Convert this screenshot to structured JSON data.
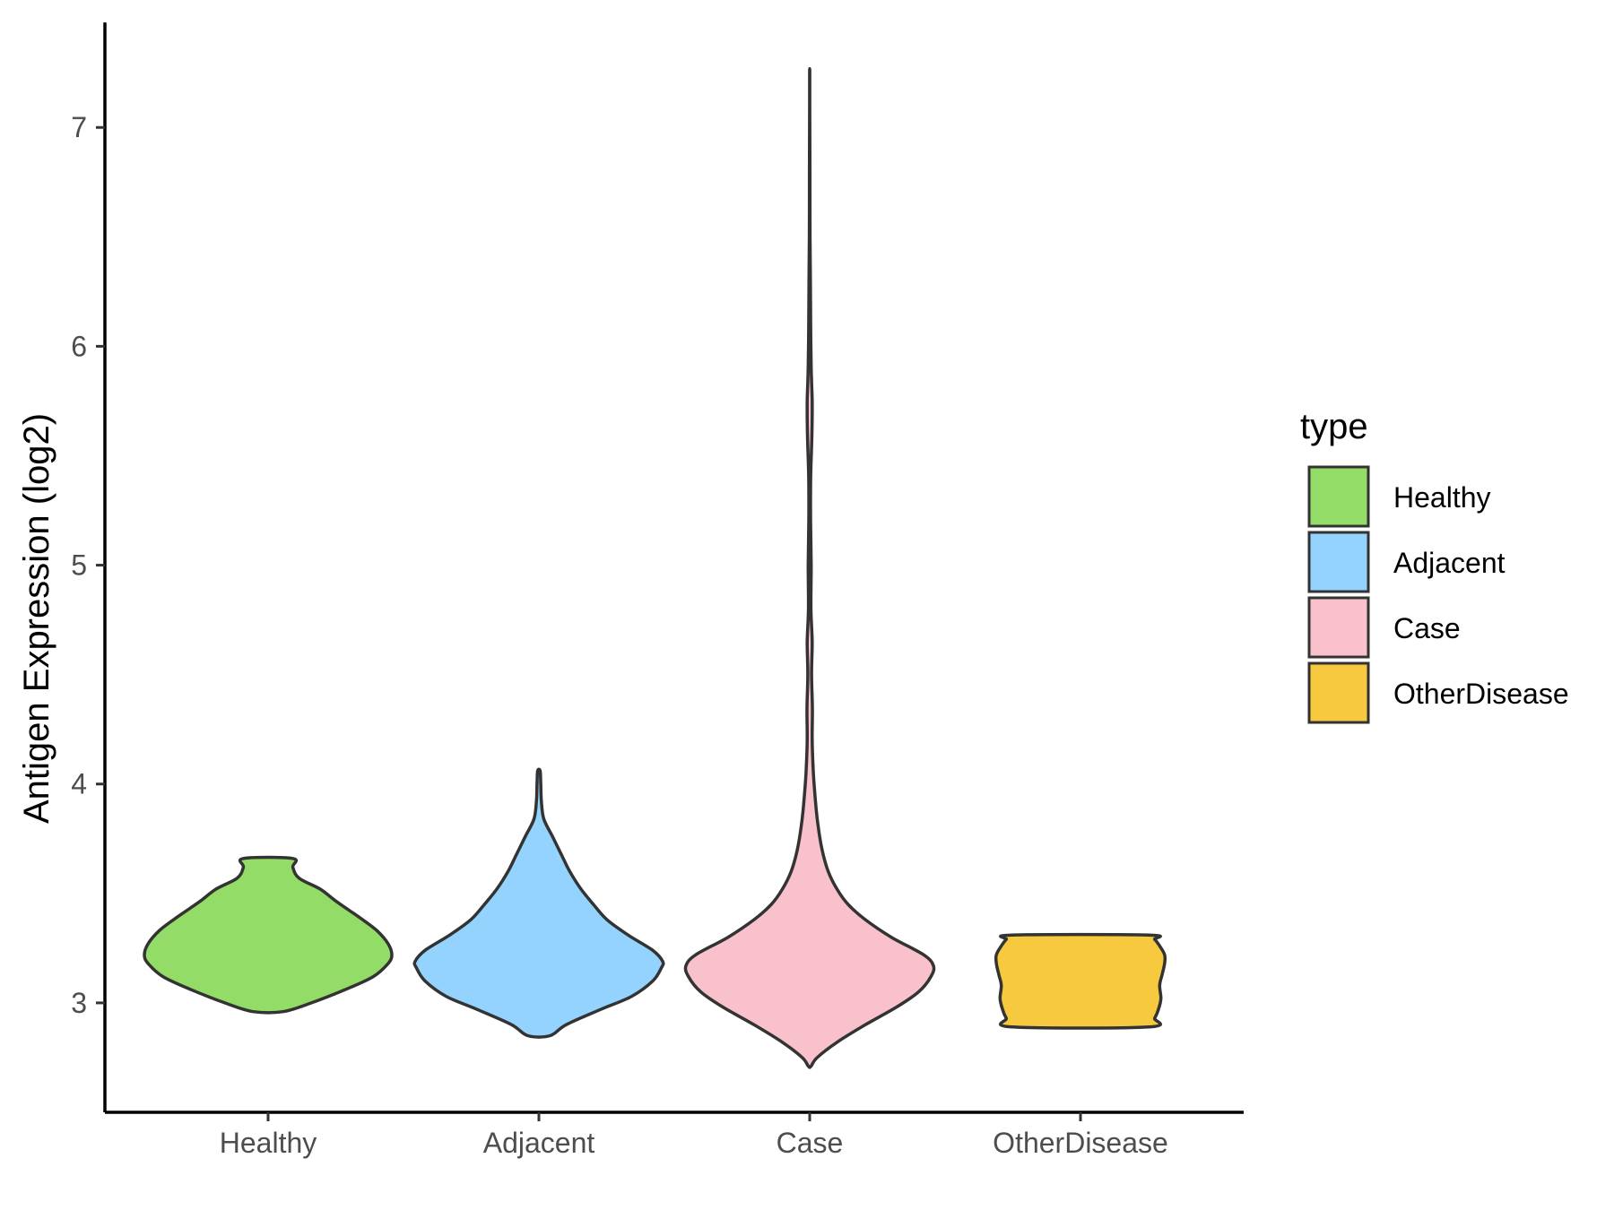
{
  "chart_data": {
    "type": "violin",
    "title": "",
    "xlabel": "",
    "ylabel": "Antigen Expression (log2)",
    "categories": [
      "Healthy",
      "Adjacent",
      "Case",
      "OtherDisease"
    ],
    "ylim": [
      2.5,
      7.48
    ],
    "yticks": [
      3,
      4,
      5,
      6,
      7
    ],
    "legend": {
      "title": "type",
      "position": "right",
      "entries": [
        "Healthy",
        "Adjacent",
        "Case",
        "OtherDisease"
      ]
    },
    "series": [
      {
        "name": "Healthy",
        "color": "#93dc68",
        "min": 2.96,
        "max": 3.66,
        "profile": [
          [
            2.96,
            0.12
          ],
          [
            3.0,
            0.35
          ],
          [
            3.06,
            0.62
          ],
          [
            3.12,
            0.85
          ],
          [
            3.18,
            0.97
          ],
          [
            3.22,
            1.0
          ],
          [
            3.27,
            0.97
          ],
          [
            3.33,
            0.88
          ],
          [
            3.39,
            0.74
          ],
          [
            3.46,
            0.56
          ],
          [
            3.52,
            0.42
          ],
          [
            3.57,
            0.25
          ],
          [
            3.62,
            0.2
          ],
          [
            3.66,
            0.2
          ]
        ]
      },
      {
        "name": "Adjacent",
        "color": "#94d3fe",
        "min": 2.85,
        "max": 4.06,
        "profile": [
          [
            2.85,
            0.09
          ],
          [
            2.9,
            0.22
          ],
          [
            2.97,
            0.5
          ],
          [
            3.03,
            0.75
          ],
          [
            3.1,
            0.92
          ],
          [
            3.16,
            0.99
          ],
          [
            3.19,
            1.0
          ],
          [
            3.24,
            0.92
          ],
          [
            3.31,
            0.72
          ],
          [
            3.38,
            0.55
          ],
          [
            3.45,
            0.44
          ],
          [
            3.52,
            0.34
          ],
          [
            3.6,
            0.25
          ],
          [
            3.68,
            0.18
          ],
          [
            3.76,
            0.11
          ],
          [
            3.84,
            0.04
          ],
          [
            3.92,
            0.02
          ],
          [
            4.0,
            0.015
          ],
          [
            4.06,
            0.01
          ]
        ]
      },
      {
        "name": "Case",
        "color": "#f8c1cc",
        "min": 2.71,
        "max": 7.25,
        "profile": [
          [
            2.71,
            0.01
          ],
          [
            2.75,
            0.06
          ],
          [
            2.82,
            0.22
          ],
          [
            2.9,
            0.45
          ],
          [
            2.98,
            0.7
          ],
          [
            3.05,
            0.88
          ],
          [
            3.12,
            0.98
          ],
          [
            3.17,
            1.0
          ],
          [
            3.22,
            0.92
          ],
          [
            3.3,
            0.66
          ],
          [
            3.38,
            0.45
          ],
          [
            3.45,
            0.31
          ],
          [
            3.52,
            0.22
          ],
          [
            3.6,
            0.15
          ],
          [
            3.7,
            0.1
          ],
          [
            3.8,
            0.07
          ],
          [
            3.9,
            0.05
          ],
          [
            4.05,
            0.03
          ],
          [
            4.2,
            0.02
          ],
          [
            4.35,
            0.022
          ],
          [
            4.5,
            0.015
          ],
          [
            4.65,
            0.02
          ],
          [
            4.8,
            0.01
          ],
          [
            5.0,
            0.012
          ],
          [
            5.2,
            0.007
          ],
          [
            5.4,
            0.008
          ],
          [
            5.6,
            0.018
          ],
          [
            5.75,
            0.02
          ],
          [
            5.9,
            0.012
          ],
          [
            6.1,
            0.008
          ],
          [
            6.3,
            0.006
          ],
          [
            6.5,
            0.003
          ],
          [
            6.8,
            0.002
          ],
          [
            7.1,
            0.001
          ],
          [
            7.25,
            0.001
          ]
        ]
      },
      {
        "name": "OtherDisease",
        "color": "#f7c93e",
        "min": 2.89,
        "max": 3.31,
        "profile": [
          [
            2.89,
            0.55
          ],
          [
            2.93,
            0.6
          ],
          [
            2.97,
            0.63
          ],
          [
            3.02,
            0.65
          ],
          [
            3.08,
            0.64
          ],
          [
            3.13,
            0.66
          ],
          [
            3.18,
            0.68
          ],
          [
            3.22,
            0.68
          ],
          [
            3.26,
            0.64
          ],
          [
            3.29,
            0.6
          ],
          [
            3.31,
            0.55
          ]
        ]
      }
    ]
  }
}
